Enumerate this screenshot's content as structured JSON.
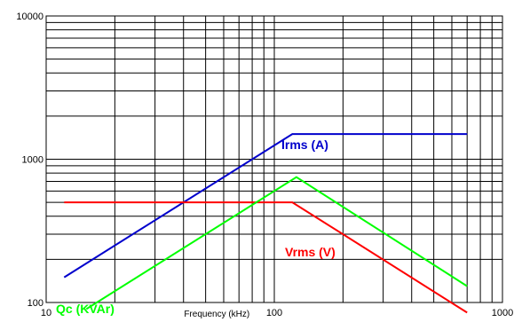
{
  "chart_data": {
    "type": "line",
    "title": "",
    "xlabel": "Frequency (kHz)",
    "ylabel": "",
    "x_scale": "log",
    "y_scale": "log",
    "xlim": [
      10,
      1000
    ],
    "ylim": [
      100,
      10000
    ],
    "grid": true,
    "x_ticks": [
      "10",
      "100",
      "1000"
    ],
    "y_ticks": [
      "100",
      "1000",
      "10000"
    ],
    "series": [
      {
        "name": "Irms (A)",
        "color": "#0000cc",
        "x": [
          12,
          120,
          700
        ],
        "y": [
          150,
          1500,
          1500
        ]
      },
      {
        "name": "Vrms (V)",
        "color": "#ff0000",
        "x": [
          12,
          120,
          700
        ],
        "y": [
          500,
          500,
          85
        ]
      },
      {
        "name": "Qc (KVAr)",
        "color": "#00ff00",
        "x": [
          15,
          125,
          700
        ],
        "y": [
          90,
          750,
          130
        ]
      }
    ]
  }
}
